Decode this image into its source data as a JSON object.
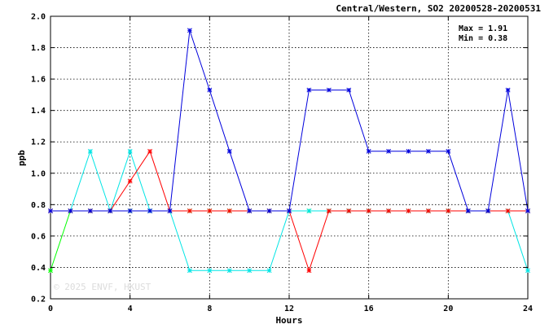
{
  "chart_data": {
    "type": "line",
    "title": "Central/Western, SO2 20200528-20200531",
    "xlabel": "Hours",
    "ylabel": "ppb",
    "xlim": [
      0,
      24
    ],
    "ylim": [
      0.2,
      2.0
    ],
    "xticks": [
      0,
      4,
      8,
      12,
      16,
      20,
      24
    ],
    "yticks": [
      0.2,
      0.4,
      0.6,
      0.8,
      1.0,
      1.2,
      1.4,
      1.6,
      1.8,
      2.0
    ],
    "ytick_labels": [
      "0.2",
      "0.4",
      "0.6",
      "0.8",
      "1.0",
      "1.2",
      "1.4",
      "1.6",
      "1.8",
      "2.0"
    ],
    "grid": true,
    "stats": {
      "max_label": "Max = 1.91",
      "min_label": "Min = 0.38"
    },
    "watermark": "© 2025  ENVF, HKUST",
    "x": [
      0,
      1,
      2,
      3,
      4,
      5,
      6,
      7,
      8,
      9,
      10,
      11,
      12,
      13,
      14,
      15,
      16,
      17,
      18,
      19,
      20,
      21,
      22,
      23,
      24
    ],
    "series": [
      {
        "color": "#00ff00",
        "values": [
          0.38,
          0.76,
          0.76,
          0.76,
          0.76,
          0.76,
          0.76,
          0.76,
          0.76,
          0.76,
          0.76,
          0.76,
          0.76,
          0.76,
          0.76,
          0.76,
          0.76,
          0.76,
          0.76,
          0.76,
          0.76,
          0.76,
          0.76,
          0.76,
          0.76
        ]
      },
      {
        "color": "#00e5e5",
        "values": [
          0.76,
          0.76,
          1.14,
          0.76,
          1.14,
          0.76,
          0.76,
          0.38,
          0.38,
          0.38,
          0.38,
          0.38,
          0.76,
          0.76,
          0.76,
          0.76,
          0.76,
          0.76,
          0.76,
          0.76,
          0.76,
          0.76,
          0.76,
          0.76,
          0.38
        ]
      },
      {
        "color": "#ff0000",
        "values": [
          0.76,
          0.76,
          0.76,
          0.76,
          0.95,
          1.14,
          0.76,
          0.76,
          0.76,
          0.76,
          0.76,
          0.76,
          0.76,
          0.38,
          0.76,
          0.76,
          0.76,
          0.76,
          0.76,
          0.76,
          0.76,
          0.76,
          0.76,
          0.76,
          0.76
        ]
      },
      {
        "color": "#0000dd",
        "values": [
          0.76,
          0.76,
          0.76,
          0.76,
          0.76,
          0.76,
          0.76,
          1.91,
          1.53,
          1.14,
          0.76,
          0.76,
          0.76,
          1.53,
          1.53,
          1.53,
          1.14,
          1.14,
          1.14,
          1.14,
          1.14,
          0.76,
          0.76,
          1.53,
          0.76
        ]
      }
    ]
  }
}
